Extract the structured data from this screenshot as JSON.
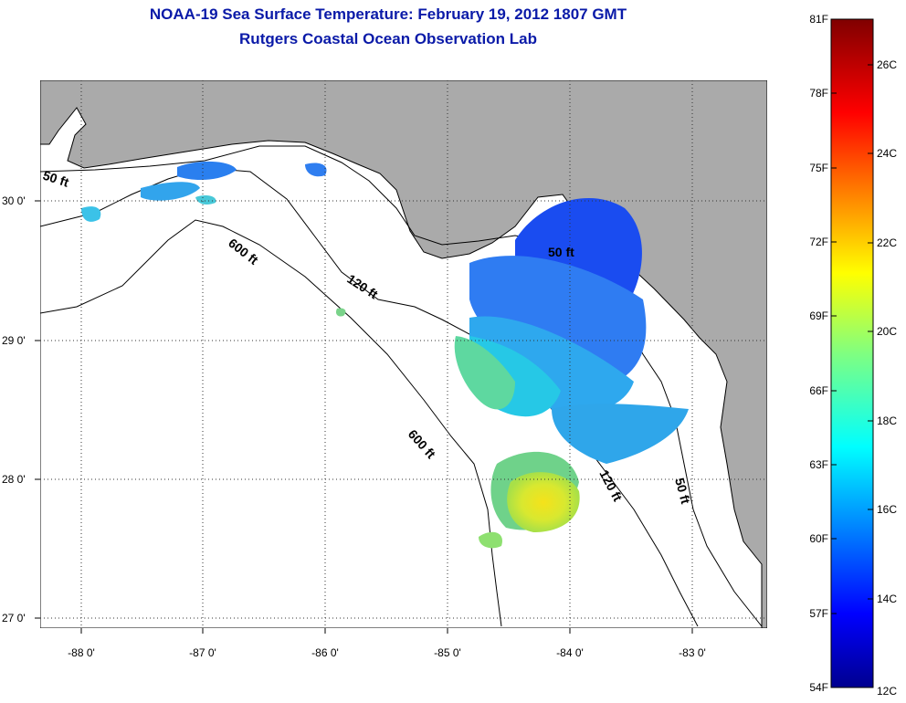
{
  "title": "NOAA-19 Sea Surface Temperature:  February 19, 2012 1807 GMT",
  "subtitle": "Rutgers Coastal Ocean Observation Lab",
  "map": {
    "lon_ticks": [
      "-88 0'",
      "-87 0'",
      "-86 0'",
      "-85 0'",
      "-84 0'",
      "-83 0'"
    ],
    "lat_ticks": [
      "30 0'",
      "29 0'",
      "28 0'",
      "27 0'"
    ],
    "contour_labels": [
      "50 ft",
      "600 ft",
      "120 ft",
      "50 ft",
      "600 ft",
      "120 ft",
      "50 ft"
    ],
    "land_color": "#aaaaaa",
    "ocean_no_data_color": "#ffffff"
  },
  "colorbar": {
    "fahrenheit_labels": [
      "81F",
      "78F",
      "75F",
      "72F",
      "69F",
      "66F",
      "63F",
      "60F",
      "57F",
      "54F"
    ],
    "celsius_labels": [
      "26C",
      "24C",
      "22C",
      "20C",
      "18C",
      "16C",
      "14C",
      "12C"
    ],
    "colormap": "jet"
  }
}
